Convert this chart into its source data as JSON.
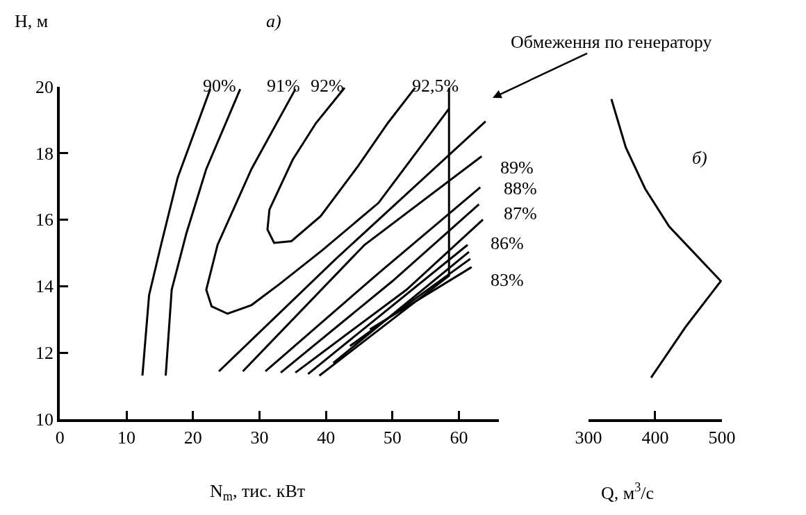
{
  "chart_data": [
    {
      "type": "line",
      "title": "а)",
      "xlabel": "N$_{m}$, тис. кВт",
      "ylabel": "H, м",
      "xlim": [
        0,
        66
      ],
      "xticks": [
        0,
        10,
        20,
        30,
        40,
        50,
        60
      ],
      "ylim": [
        10,
        20
      ],
      "yticks": [
        10,
        12,
        14,
        16,
        18,
        20
      ],
      "marker": "none",
      "line_style": "solid",
      "series": [
        {
          "color": "#000000",
          "x": [
            12.4,
            13.4,
            15.2,
            17.7,
            22.6
          ],
          "values": [
            11.31,
            13.73,
            15.24,
            17.26,
            19.92
          ]
        },
        {
          "color": "#000000",
          "x": [
            15.9,
            16.8,
            19.0,
            22.0,
            27.1
          ],
          "values": [
            11.31,
            13.89,
            15.58,
            17.52,
            19.92
          ]
        },
        {
          "color": "#000000",
          "x": [
            35.4,
            28.8,
            23.7,
            22.0,
            22.8,
            25.2,
            28.8,
            33.0,
            39.4,
            47.9,
            58.5
          ],
          "values": [
            19.92,
            17.52,
            15.24,
            13.89,
            13.39,
            13.17,
            13.43,
            14.06,
            15.07,
            16.5,
            19.33
          ]
        },
        {
          "color": "#000000",
          "x": [
            42.8,
            38.5,
            35.0,
            31.5,
            31.2,
            32.2,
            34.8,
            39.2,
            44.8,
            49.3,
            53.4
          ],
          "values": [
            19.96,
            18.9,
            17.8,
            16.3,
            15.7,
            15.3,
            15.35,
            16.1,
            17.6,
            18.9,
            19.96
          ]
        },
        {
          "color": "#000000",
          "x": [
            23.9,
            41.5,
            64.0
          ],
          "values": [
            11.44,
            14.82,
            18.95
          ]
        },
        {
          "color": "#000000",
          "x": [
            27.5,
            45.8,
            63.4
          ],
          "values": [
            11.44,
            15.24,
            17.9
          ]
        },
        {
          "color": "#000000",
          "x": [
            30.9,
            47.9,
            63.2
          ],
          "values": [
            11.44,
            14.39,
            16.97
          ]
        },
        {
          "color": "#000000",
          "x": [
            33.2,
            50.0,
            63.0
          ],
          "values": [
            11.4,
            14.15,
            16.46
          ]
        },
        {
          "color": "#000000",
          "x": [
            35.4,
            52.1,
            63.6
          ],
          "values": [
            11.4,
            13.89,
            16.0
          ]
        },
        {
          "color": "#000000",
          "x": [
            37.3,
            61.3
          ],
          "values": [
            11.36,
            15.24
          ]
        },
        {
          "color": "#000000",
          "x": [
            41.1,
            61.5
          ],
          "values": [
            11.69,
            15.03
          ]
        },
        {
          "color": "#000000",
          "x": [
            43.6,
            61.7
          ],
          "values": [
            12.2,
            14.82
          ]
        },
        {
          "color": "#000000",
          "x": [
            46.6,
            61.9
          ],
          "values": [
            12.7,
            14.57
          ]
        },
        {
          "color": "#000000",
          "x": [
            39.0,
            58.5,
            58.5
          ],
          "values": [
            11.31,
            14.31,
            19.96
          ]
        }
      ],
      "annotations": [
        "90%",
        "91%",
        "92%",
        "92,5%",
        "89%",
        "88%",
        "87%",
        "86%",
        "83%",
        "Обмеження по генератору"
      ]
    },
    {
      "type": "line",
      "title": "б)",
      "xlabel": "Q, м$^{3}$/с",
      "xlim": [
        300,
        500
      ],
      "xticks": [
        300,
        400,
        500
      ],
      "ylim": [
        10,
        20
      ],
      "yticks": [
        10,
        12,
        14,
        16,
        18,
        20
      ],
      "tick_labels": "x",
      "marker": "none",
      "line_style": "solid",
      "series": [
        {
          "color": "#000000",
          "x": [
            334.3,
            356.0,
            384.8,
            420.9,
            498.5,
            446.2,
            393.8
          ],
          "values": [
            19.62,
            18.16,
            16.93,
            15.79,
            14.15,
            12.79,
            11.25
          ]
        }
      ]
    }
  ]
}
